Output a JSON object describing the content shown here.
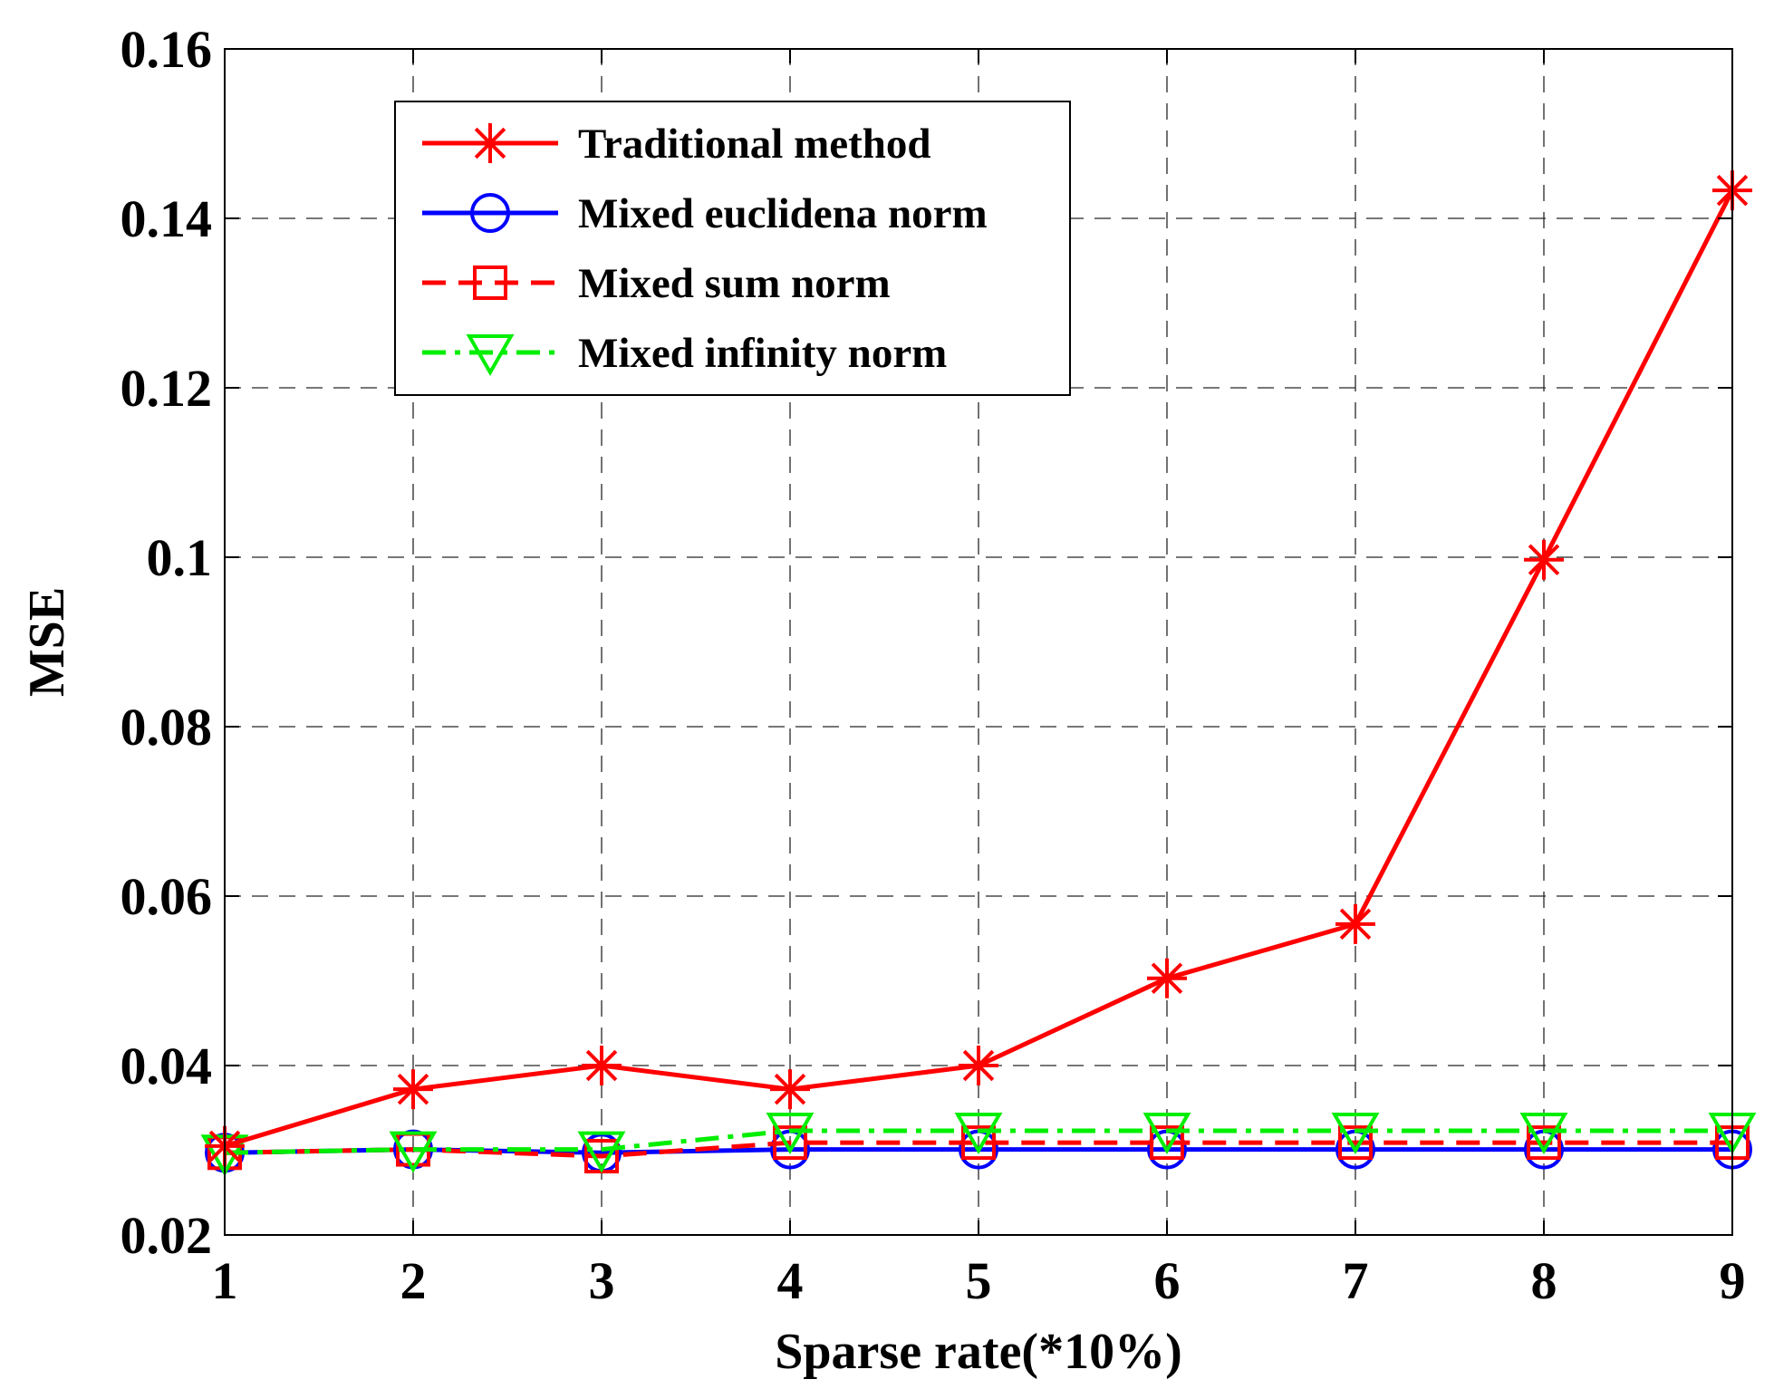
{
  "chart_data": {
    "type": "line",
    "title": "",
    "xlabel": "Sparse rate(*10%)",
    "ylabel": "MSE",
    "x": [
      1,
      2,
      3,
      4,
      5,
      6,
      7,
      8,
      9
    ],
    "xlim": [
      1,
      9
    ],
    "ylim": [
      0.02,
      0.16
    ],
    "xticks": [
      1,
      2,
      3,
      4,
      5,
      6,
      7,
      8,
      9
    ],
    "xtick_labels": [
      "1",
      "2",
      "3",
      "4",
      "5",
      "6",
      "7",
      "8",
      "9"
    ],
    "yticks": [
      0.02,
      0.04,
      0.06,
      0.08,
      0.1,
      0.12,
      0.14,
      0.16
    ],
    "ytick_labels": [
      "0.02",
      "0.04",
      "0.06",
      "0.08",
      "0.1",
      "0.12",
      "0.14",
      "0.16"
    ],
    "grid": true,
    "legend_position": "top-left",
    "series": [
      {
        "name": "Traditional method",
        "color": "#ff0000",
        "line_style": "solid",
        "marker": "asterisk",
        "values": [
          0.0305,
          0.0372,
          0.04,
          0.0372,
          0.04,
          0.0503,
          0.0567,
          0.0997,
          0.1433
        ]
      },
      {
        "name": "Mixed euclidena norm",
        "color": "#0000ff",
        "line_style": "solid",
        "marker": "circle",
        "values": [
          0.0297,
          0.0301,
          0.0297,
          0.0301,
          0.0301,
          0.0301,
          0.0301,
          0.0301,
          0.0301
        ]
      },
      {
        "name": "Mixed sum norm",
        "color": "#ff0000",
        "line_style": "dashed",
        "marker": "square",
        "values": [
          0.0297,
          0.0301,
          0.0293,
          0.0309,
          0.0309,
          0.0309,
          0.0309,
          0.0309,
          0.0309
        ]
      },
      {
        "name": "Mixed infinity norm",
        "color": "#00ee00",
        "line_style": "dashdot",
        "marker": "triangle-down",
        "values": [
          0.0297,
          0.0301,
          0.0301,
          0.0323,
          0.0323,
          0.0323,
          0.0323,
          0.0323,
          0.0323
        ]
      }
    ]
  }
}
